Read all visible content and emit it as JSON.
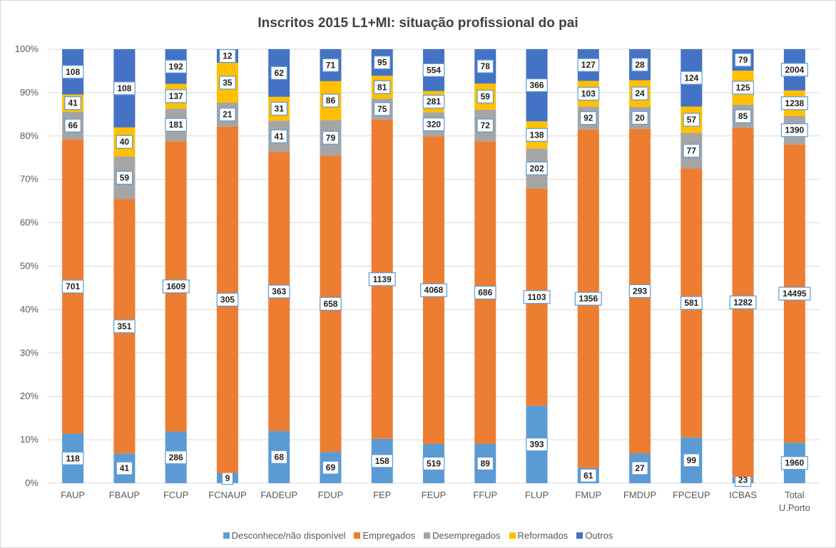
{
  "chart_data": {
    "type": "bar",
    "stacked": true,
    "normalized": true,
    "title": "Inscritos 2015 L1+MI: situação profissional do pai",
    "ylim": [
      0,
      100
    ],
    "y_ticks": [
      "0%",
      "10%",
      "20%",
      "30%",
      "40%",
      "50%",
      "60%",
      "70%",
      "80%",
      "90%",
      "100%"
    ],
    "categories": [
      [
        "FAUP"
      ],
      [
        "FBAUP"
      ],
      [
        "FCUP"
      ],
      [
        "FCNAUP"
      ],
      [
        "FADEUP"
      ],
      [
        "FDUP"
      ],
      [
        "FEP"
      ],
      [
        "FEUP"
      ],
      [
        "FFUP"
      ],
      [
        "FLUP"
      ],
      [
        "FMUP"
      ],
      [
        "FMDUP"
      ],
      [
        "FPCEUP"
      ],
      [
        "ICBAS"
      ],
      [
        "Total",
        "U.Porto"
      ]
    ],
    "series": [
      {
        "name": "Desconhece/não disponível",
        "color": "#5B9BD5",
        "values": [
          118,
          41,
          286,
          9,
          68,
          69,
          158,
          519,
          89,
          393,
          61,
          27,
          99,
          23,
          1960
        ]
      },
      {
        "name": "Empregados",
        "color": "#ED7D31",
        "values": [
          701,
          351,
          1609,
          305,
          363,
          658,
          1139,
          4068,
          686,
          1103,
          1356,
          293,
          581,
          1282,
          14495
        ]
      },
      {
        "name": "Desempregados",
        "color": "#A5A5A5",
        "values": [
          66,
          59,
          181,
          21,
          41,
          79,
          75,
          320,
          72,
          202,
          92,
          20,
          77,
          85,
          1390
        ]
      },
      {
        "name": "Reformados",
        "color": "#FFC000",
        "values": [
          41,
          40,
          137,
          35,
          31,
          86,
          81,
          281,
          59,
          138,
          103,
          24,
          57,
          125,
          1238
        ]
      },
      {
        "name": "Outros",
        "color": "#4472C4",
        "values": [
          108,
          108,
          192,
          12,
          62,
          71,
          95,
          554,
          78,
          366,
          127,
          28,
          124,
          79,
          2004
        ]
      }
    ],
    "grid": true,
    "legend_position": "bottom"
  }
}
